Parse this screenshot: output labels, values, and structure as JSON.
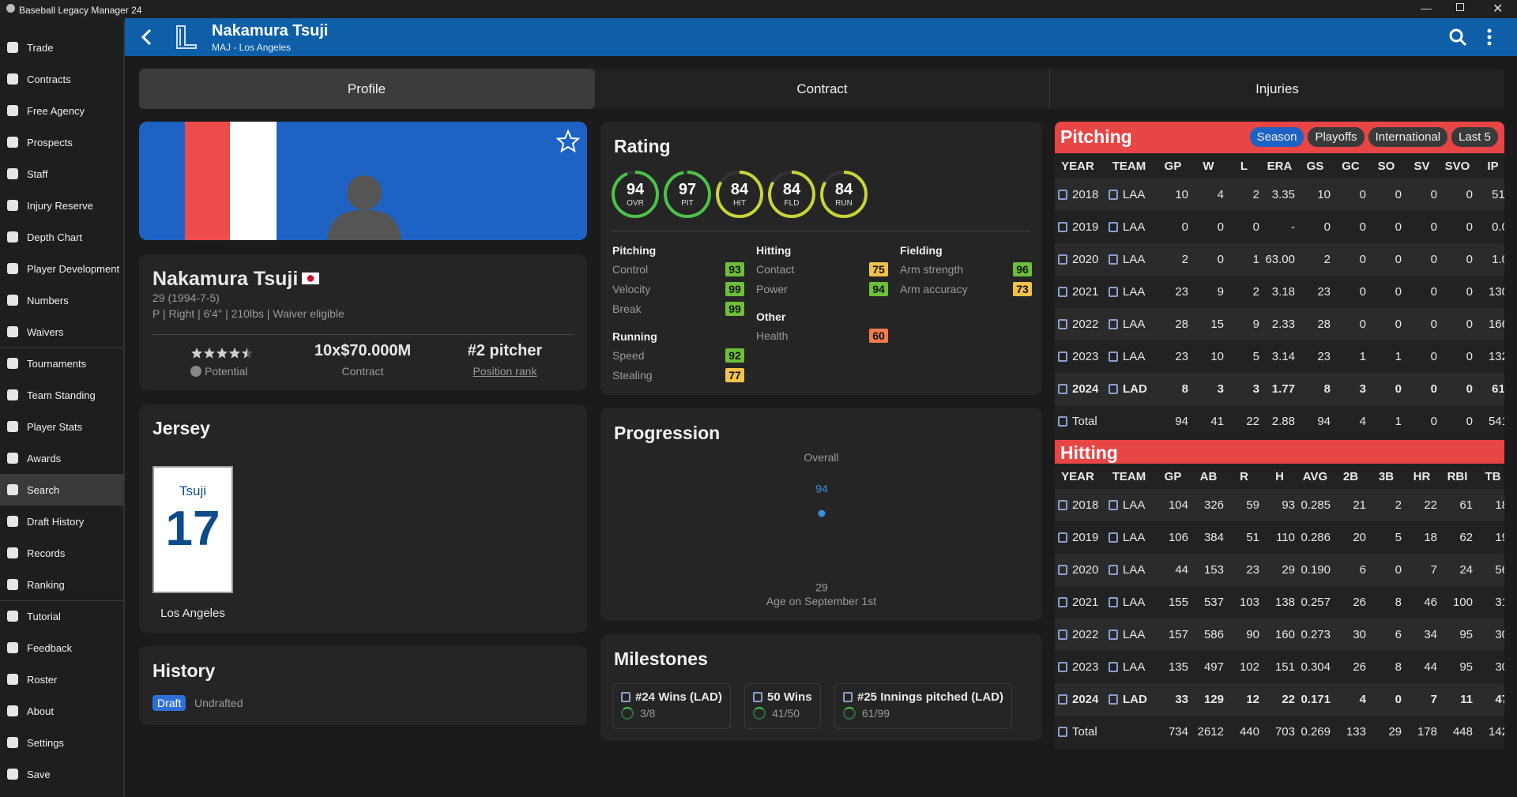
{
  "window": {
    "title": "Baseball Legacy Manager 24"
  },
  "sidebar": [
    "Trade",
    "Contracts",
    "Free Agency",
    "Prospects",
    "Staff",
    "Injury Reserve",
    "Depth Chart",
    "Player Development",
    "Numbers",
    "Waivers",
    "Tournaments",
    "Team Standing",
    "Player Stats",
    "Awards",
    "Search",
    "Draft History",
    "Records",
    "Ranking",
    "Tutorial",
    "Feedback",
    "Roster",
    "About",
    "Settings",
    "Save"
  ],
  "sidebar_active": 14,
  "header": {
    "name": "Nakamura Tsuji",
    "subtitle": "MAJ - Los Angeles"
  },
  "tabs": [
    "Profile",
    "Contract",
    "Injuries"
  ],
  "active_tab": 0,
  "profile": {
    "name": "Nakamura Tsuji",
    "age_line": "29 (1994-7-5)",
    "info": "P | Right | 6'4'' | 210lbs | Waiver eligible",
    "potential_stars": 4.5,
    "potential_label": "Potential",
    "contract_value": "10x$70.000M",
    "contract_label": "Contract",
    "rank": "#2 pitcher",
    "rank_label": "Position rank"
  },
  "jersey": {
    "title": "Jersey",
    "name": "Tsuji",
    "number": "17",
    "city": "Los Angeles"
  },
  "history": {
    "title": "History",
    "badge": "Draft",
    "text": "Undrafted"
  },
  "rating": {
    "title": "Rating",
    "circles": [
      {
        "value": 94,
        "label": "OVR"
      },
      {
        "value": 97,
        "label": "PIT"
      },
      {
        "value": 84,
        "label": "HIT"
      },
      {
        "value": 84,
        "label": "FLD"
      },
      {
        "value": 84,
        "label": "RUN"
      }
    ],
    "columns": [
      [
        {
          "title": "Pitching",
          "items": [
            {
              "name": "Control",
              "value": 93
            },
            {
              "name": "Velocity",
              "value": 99
            },
            {
              "name": "Break",
              "value": 99
            }
          ]
        },
        {
          "title": "Running",
          "items": [
            {
              "name": "Speed",
              "value": 92
            },
            {
              "name": "Stealing",
              "value": 77
            }
          ]
        }
      ],
      [
        {
          "title": "Hitting",
          "items": [
            {
              "name": "Contact",
              "value": 75
            },
            {
              "name": "Power",
              "value": 94
            }
          ]
        },
        {
          "title": "Other",
          "items": [
            {
              "name": "Health",
              "value": 60
            }
          ]
        }
      ],
      [
        {
          "title": "Fielding",
          "items": [
            {
              "name": "Arm strength",
              "value": 96
            },
            {
              "name": "Arm accuracy",
              "value": 73
            }
          ]
        }
      ]
    ]
  },
  "progression": {
    "title": "Progression",
    "series_label": "Overall",
    "x": [
      29
    ],
    "values": [
      94
    ],
    "value_labels": [
      "94"
    ],
    "xticks": [
      29
    ],
    "xlabel": "Age on September 1st"
  },
  "milestones": {
    "title": "Milestones",
    "items": [
      {
        "label": "#24 Wins (LAD)",
        "progress": "3/8"
      },
      {
        "label": "50 Wins",
        "progress": "41/50"
      },
      {
        "label": "#25 Innings pitched (LAD)",
        "progress": "61/99"
      }
    ]
  },
  "pitching": {
    "title": "Pitching",
    "filters": [
      "Season",
      "Playoffs",
      "International",
      "Last 5"
    ],
    "columns": [
      "YEAR",
      "TEAM",
      "GP",
      "W",
      "L",
      "ERA",
      "GS",
      "GC",
      "SO",
      "SV",
      "SVO",
      "IP"
    ],
    "rows": [
      [
        "2018",
        "LAA",
        "10",
        "4",
        "2",
        "3.35",
        "10",
        "0",
        "0",
        "0",
        "0",
        "51."
      ],
      [
        "2019",
        "LAA",
        "0",
        "0",
        "0",
        "-",
        "0",
        "0",
        "0",
        "0",
        "0",
        "0.0"
      ],
      [
        "2020",
        "LAA",
        "2",
        "0",
        "1",
        "63.00",
        "2",
        "0",
        "0",
        "0",
        "0",
        "1.0"
      ],
      [
        "2021",
        "LAA",
        "23",
        "9",
        "2",
        "3.18",
        "23",
        "0",
        "0",
        "0",
        "0",
        "130"
      ],
      [
        "2022",
        "LAA",
        "28",
        "15",
        "9",
        "2.33",
        "28",
        "0",
        "0",
        "0",
        "0",
        "166"
      ],
      [
        "2023",
        "LAA",
        "23",
        "10",
        "5",
        "3.14",
        "23",
        "1",
        "1",
        "0",
        "0",
        "132"
      ],
      [
        "2024",
        "LAD",
        "8",
        "3",
        "3",
        "1.77",
        "8",
        "3",
        "0",
        "0",
        "0",
        "61."
      ],
      [
        "Total",
        "",
        "94",
        "41",
        "22",
        "2.88",
        "94",
        "4",
        "1",
        "0",
        "0",
        "541"
      ]
    ],
    "bold_row": 6
  },
  "hitting": {
    "title": "Hitting",
    "columns": [
      "YEAR",
      "TEAM",
      "GP",
      "AB",
      "R",
      "H",
      "AVG",
      "2B",
      "3B",
      "HR",
      "RBI",
      "TB"
    ],
    "rows": [
      [
        "2018",
        "LAA",
        "104",
        "326",
        "59",
        "93",
        "0.285",
        "21",
        "2",
        "22",
        "61",
        "18"
      ],
      [
        "2019",
        "LAA",
        "106",
        "384",
        "51",
        "110",
        "0.286",
        "20",
        "5",
        "18",
        "62",
        "19"
      ],
      [
        "2020",
        "LAA",
        "44",
        "153",
        "23",
        "29",
        "0.190",
        "6",
        "0",
        "7",
        "24",
        "56"
      ],
      [
        "2021",
        "LAA",
        "155",
        "537",
        "103",
        "138",
        "0.257",
        "26",
        "8",
        "46",
        "100",
        "31"
      ],
      [
        "2022",
        "LAA",
        "157",
        "586",
        "90",
        "160",
        "0.273",
        "30",
        "6",
        "34",
        "95",
        "30"
      ],
      [
        "2023",
        "LAA",
        "135",
        "497",
        "102",
        "151",
        "0.304",
        "26",
        "8",
        "44",
        "95",
        "30"
      ],
      [
        "2024",
        "LAD",
        "33",
        "129",
        "12",
        "22",
        "0.171",
        "4",
        "0",
        "7",
        "11",
        "47"
      ],
      [
        "Total",
        "",
        "734",
        "2612",
        "440",
        "703",
        "0.269",
        "133",
        "29",
        "178",
        "448",
        "142"
      ]
    ],
    "bold_row": 6
  }
}
